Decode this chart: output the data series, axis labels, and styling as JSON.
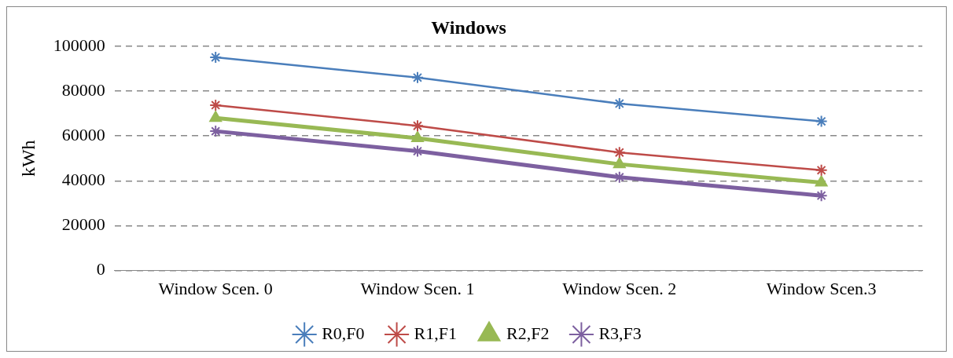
{
  "chart_data": {
    "type": "line",
    "title": "Windows",
    "ylabel": "kWh",
    "categories": [
      "Window Scen. 0",
      "Window Scen. 1",
      "Window Scen. 2",
      "Window Scen.3"
    ],
    "series": [
      {
        "name": "R0,F0",
        "color": "#4a7ebb",
        "marker": "cross",
        "values": [
          95000,
          86000,
          74400,
          66500
        ]
      },
      {
        "name": "R1,F1",
        "color": "#be4b48",
        "marker": "cross",
        "values": [
          73700,
          64500,
          52600,
          44700
        ]
      },
      {
        "name": "R2,F2",
        "color": "#98b954",
        "marker": "triangle",
        "values": [
          68000,
          59000,
          47400,
          39200
        ]
      },
      {
        "name": "R3,F3",
        "color": "#7d60a0",
        "marker": "cross",
        "values": [
          62100,
          53200,
          41600,
          33400
        ]
      }
    ],
    "ylim": [
      0,
      100000
    ],
    "yticks": [
      0,
      20000,
      40000,
      60000,
      80000,
      100000
    ],
    "grid": "y",
    "legend": "bottom",
    "line_style": "solid"
  }
}
